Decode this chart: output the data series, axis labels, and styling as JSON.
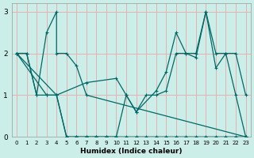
{
  "xlabel": "Humidex (Indice chaleur)",
  "bg_color": "#cceee8",
  "grid_color": "#e8b0b0",
  "line_color": "#006868",
  "xlim": [
    -0.5,
    23.5
  ],
  "ylim": [
    0,
    3.2
  ],
  "xticks": [
    0,
    1,
    2,
    3,
    4,
    5,
    6,
    7,
    8,
    9,
    10,
    11,
    12,
    13,
    14,
    15,
    16,
    17,
    18,
    19,
    20,
    21,
    22,
    23
  ],
  "yticks": [
    0,
    1,
    2,
    3
  ],
  "series": [
    {
      "x": [
        0,
        3,
        4,
        5,
        6,
        7,
        8,
        9,
        10,
        11,
        12,
        13,
        14,
        15,
        16,
        17,
        18,
        19,
        20,
        21,
        22,
        23
      ],
      "y": [
        2.0,
        1.0,
        1.0,
        0.0,
        0.0,
        0.0,
        0.0,
        0.0,
        0.0,
        0.0,
        0.0,
        0.0,
        0.0,
        0.0,
        0.0,
        0.0,
        0.0,
        0.0,
        0.0,
        0.0,
        0.0,
        0.0
      ]
    },
    {
      "comment": "top-left spike series: 0->2, 1->2, drop, 3->2.5, 4->3, 5->2, 6->1.7, 7->1",
      "x": [
        0,
        1,
        2,
        3,
        4,
        4,
        5,
        6,
        7,
        23
      ],
      "y": [
        2.0,
        2.0,
        1.0,
        2.5,
        3.0,
        2.0,
        2.0,
        1.7,
        1.0,
        0.0
      ]
    },
    {
      "x": [
        0,
        1,
        2,
        3,
        4,
        5,
        6,
        7,
        8,
        9,
        10,
        11,
        12,
        13,
        14,
        15,
        16,
        17,
        18,
        19,
        20,
        21,
        22,
        23
      ],
      "y": [
        2.0,
        2.0,
        1.0,
        1.0,
        1.0,
        0.0,
        0.0,
        0.0,
        0.0,
        0.0,
        0.0,
        1.0,
        0.6,
        1.0,
        1.0,
        1.1,
        2.0,
        2.0,
        2.0,
        3.0,
        2.0,
        2.0,
        1.0,
        0.0
      ]
    },
    {
      "x": [
        0,
        4,
        7,
        10,
        11,
        12,
        14,
        15,
        16,
        17,
        18,
        19,
        20,
        21,
        22,
        23
      ],
      "y": [
        2.0,
        1.0,
        1.3,
        1.4,
        1.0,
        0.6,
        1.1,
        1.55,
        2.5,
        2.0,
        1.9,
        3.0,
        1.65,
        2.0,
        2.0,
        1.0
      ]
    }
  ]
}
